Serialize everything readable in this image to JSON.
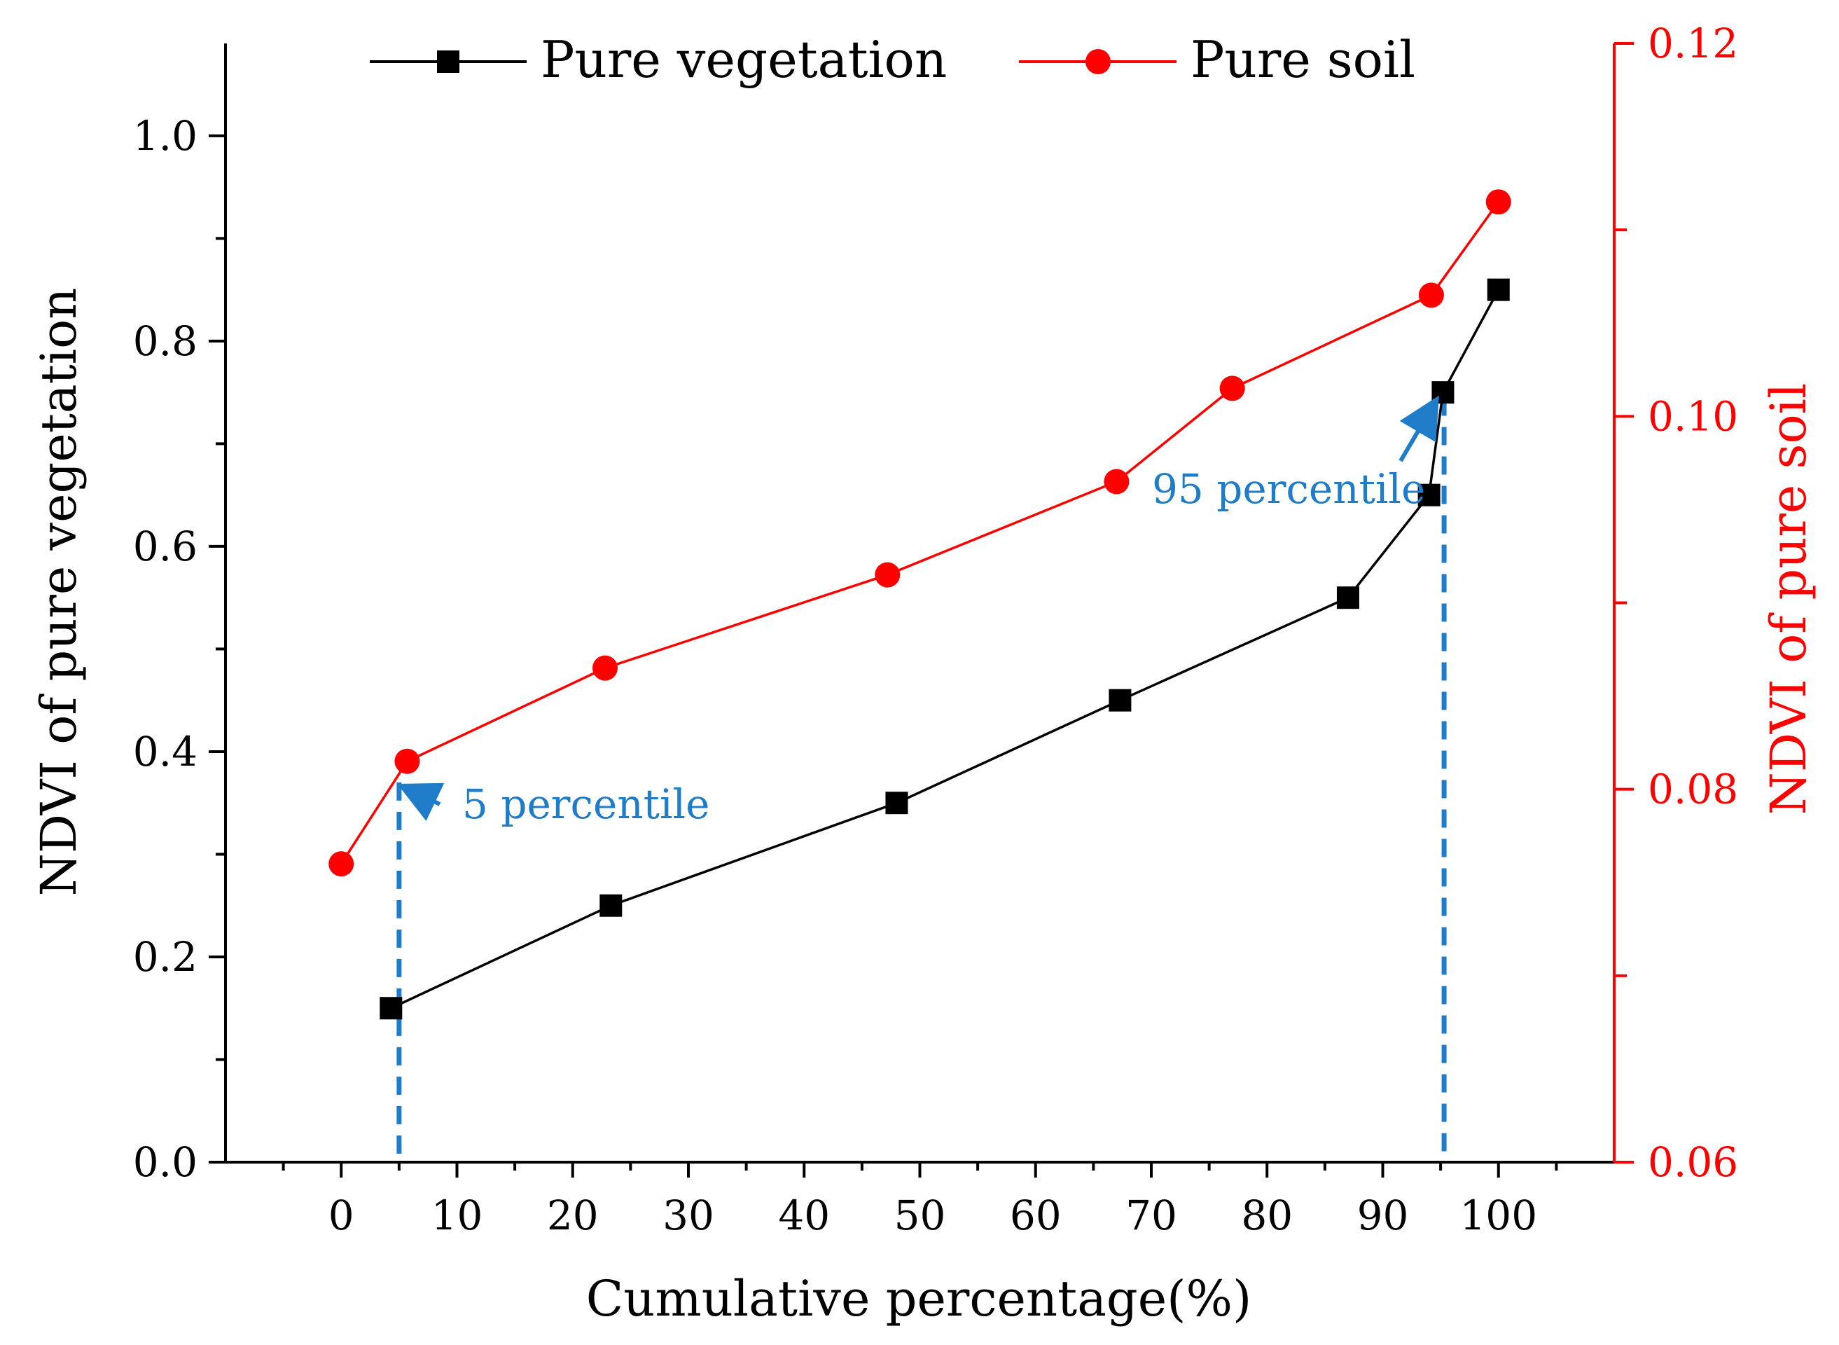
{
  "chart_data": {
    "type": "line",
    "xlabel": "Cumulative percentage(%)",
    "ylabel_left": "NDVI of pure vegetation",
    "ylabel_right": "NDVI of pure soil",
    "xlim": [
      -10,
      110
    ],
    "ylim_left": [
      0.0,
      1.09
    ],
    "ylim_right": [
      0.06,
      0.12
    ],
    "x_ticks": [
      0,
      10,
      20,
      30,
      40,
      50,
      60,
      70,
      80,
      90,
      100
    ],
    "x_tick_labels": [
      "0",
      "10",
      "20",
      "30",
      "40",
      "50",
      "60",
      "70",
      "80",
      "90",
      "100"
    ],
    "y_left_ticks": [
      0.0,
      0.2,
      0.4,
      0.6,
      0.8,
      1.0
    ],
    "y_left_tick_labels": [
      "0.0",
      "0.2",
      "0.4",
      "0.6",
      "0.8",
      "1.0"
    ],
    "y_right_ticks": [
      0.06,
      0.08,
      0.1,
      0.12
    ],
    "y_right_tick_labels": [
      "0.06",
      "0.08",
      "0.10",
      "0.12"
    ],
    "grid": false,
    "legend_position": "top",
    "series": [
      {
        "name": "Pure vegetation",
        "axis": "left",
        "color": "#000000",
        "marker": "square",
        "x": [
          4.3,
          23.3,
          48,
          67.3,
          87,
          94,
          95.2,
          100
        ],
        "y": [
          0.15,
          0.25,
          0.35,
          0.45,
          0.55,
          0.65,
          0.75,
          0.85
        ]
      },
      {
        "name": "Pure soil",
        "axis": "right",
        "color": "#ff0000",
        "marker": "circle",
        "x": [
          0,
          5.7,
          22.8,
          47.2,
          67,
          77,
          94.2,
          100
        ],
        "y": [
          0.076,
          0.0815,
          0.0865,
          0.0915,
          0.0965,
          0.1015,
          0.1065,
          0.1115
        ]
      }
    ],
    "reference_lines": [
      {
        "x": 5,
        "color": "#1f7cc8",
        "style": "dashed"
      },
      {
        "x": 95.3,
        "color": "#1f7cc8",
        "style": "dashed"
      }
    ],
    "annotations": [
      {
        "text": "5 percentile",
        "color": "#1f7cc8",
        "arrow_to": [
          5.5,
          0.365
        ]
      },
      {
        "text": "95 percentile",
        "color": "#1f7cc8",
        "arrow_to": [
          94.5,
          0.74
        ]
      }
    ]
  }
}
